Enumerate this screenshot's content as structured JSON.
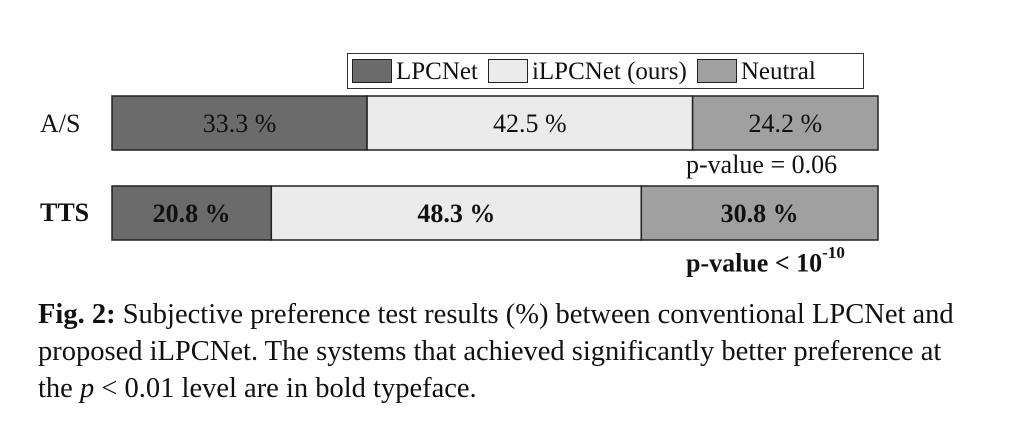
{
  "chart_data": {
    "type": "bar",
    "orientation": "horizontal-stacked",
    "series": [
      {
        "name": "LPCNet",
        "color": "#6b6b6b"
      },
      {
        "name": "iLPCNet (ours)",
        "color": "#ebebeb"
      },
      {
        "name": "Neutral",
        "color": "#a0a0a0"
      }
    ],
    "rows": [
      {
        "label": "A/S",
        "bold": false,
        "values": [
          33.3,
          42.5,
          24.2
        ],
        "value_labels": [
          "33.3 %",
          "42.5 %",
          "24.2 %"
        ],
        "pvalue": {
          "text": "p-value = 0.06",
          "base": "",
          "exp": ""
        }
      },
      {
        "label": "TTS",
        "bold": true,
        "values": [
          20.8,
          48.3,
          30.8
        ],
        "value_labels": [
          "20.8 %",
          "48.3 %",
          "30.8 %"
        ],
        "pvalue": {
          "text": "",
          "base": "p-value < 10",
          "exp": "-10"
        }
      }
    ],
    "legend_position": "top-right",
    "xlim": [
      0,
      100
    ]
  },
  "caption": {
    "fig_label": "Fig. 2:",
    "text_before": " Subjective preference test results (%) between conventional LPCNet and proposed iLPCNet. The systems that achieved significantly better preference at the ",
    "math": "p",
    "math_rest": " < 0.01",
    "text_after": " level are in bold typeface."
  }
}
